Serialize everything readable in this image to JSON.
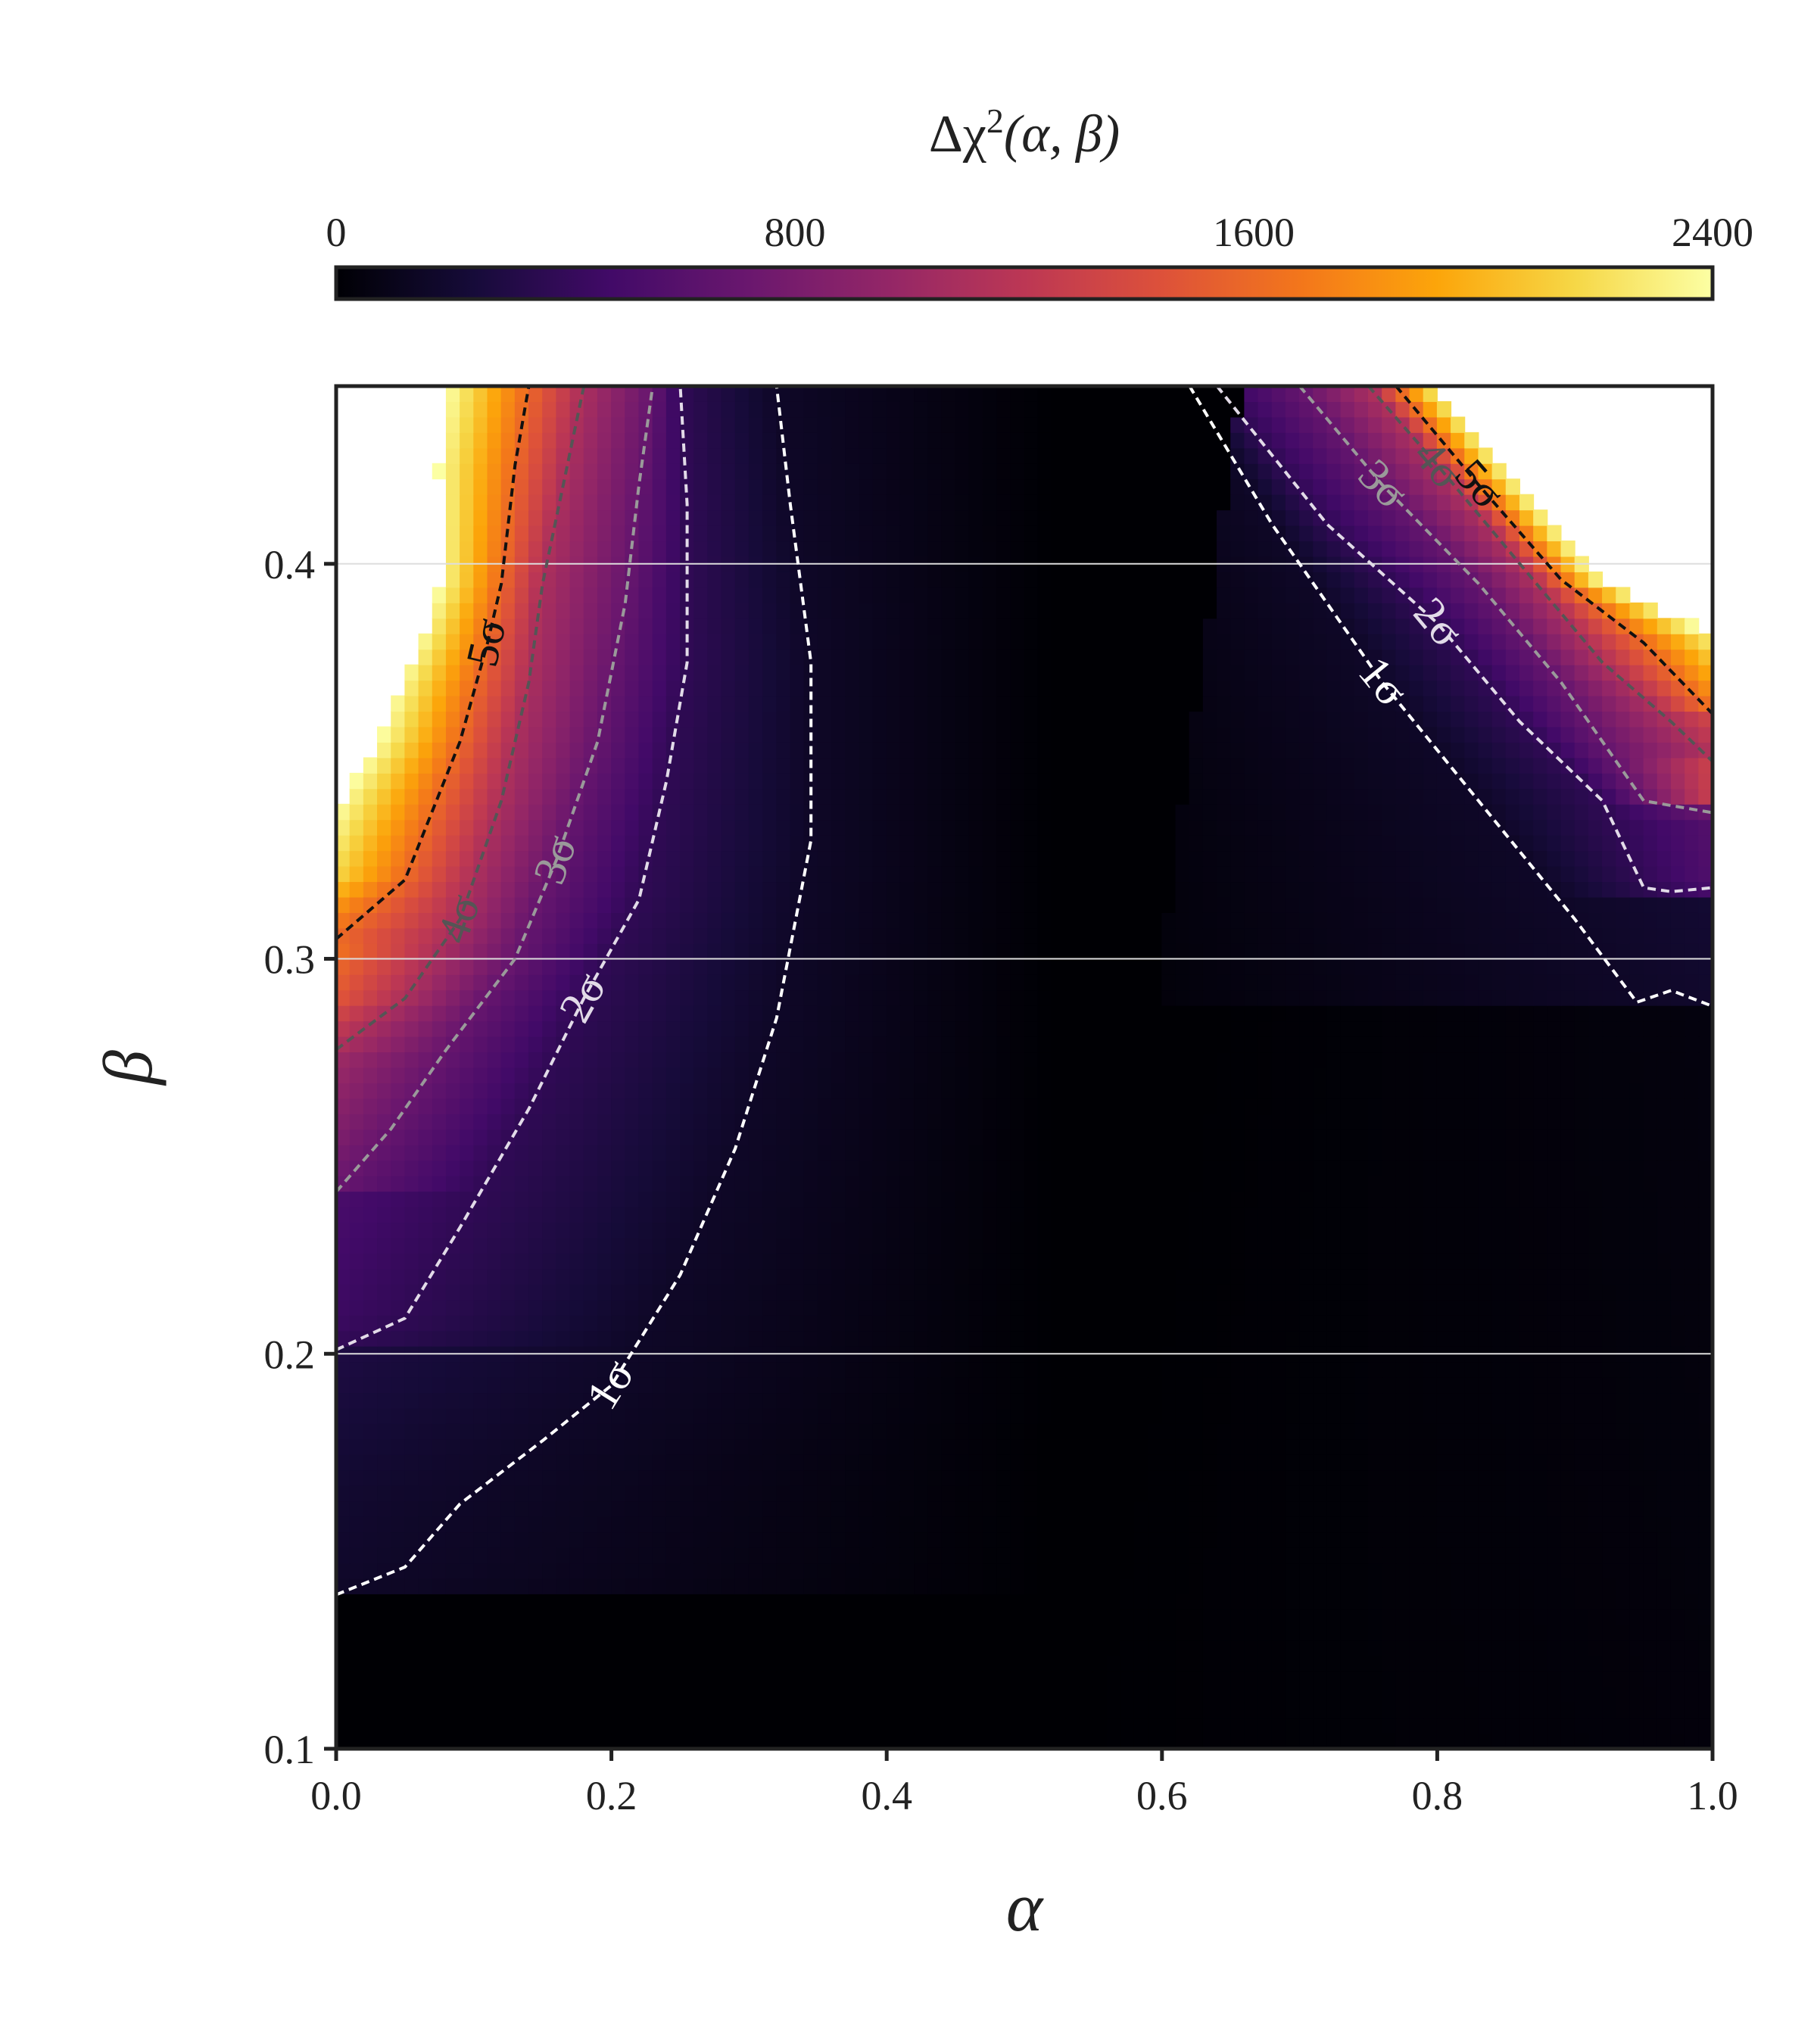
{
  "chart_data": {
    "type": "heatmap",
    "subtype": "filled contour",
    "colorscale": "inferno",
    "colorbar": {
      "title": "Δχ²(α, β)",
      "title_parts": {
        "delta": "Δχ",
        "sup": "2",
        "args": "(α, β)"
      },
      "range": [
        0,
        2400
      ],
      "ticks": [
        0,
        800,
        1600,
        2400
      ],
      "tick_labels": [
        "0",
        "800",
        "1600",
        "2400"
      ],
      "orientation": "horizontal",
      "placement": "top"
    },
    "xlabel": "α",
    "ylabel": "β",
    "xlim": [
      0.0,
      1.0
    ],
    "ylim": [
      0.1,
      0.445
    ],
    "xticks": [
      0.0,
      0.2,
      0.4,
      0.6,
      0.8,
      1.0
    ],
    "xtick_labels": [
      "0.0",
      "0.2",
      "0.4",
      "0.6",
      "0.8",
      "1.0"
    ],
    "yticks": [
      0.1,
      0.2,
      0.3,
      0.4
    ],
    "ytick_labels": [
      "0.1",
      "0.2",
      "0.3",
      "0.4"
    ],
    "grid": "horizontal only, light",
    "minimum": {
      "alpha": 0.52,
      "beta": 0.1,
      "value": 0
    },
    "masked_above": 2400,
    "contours": [
      {
        "label": "1σ",
        "color": "#ffffff",
        "style": "dashed",
        "left_branch": [
          [
            0.0,
            0.139
          ],
          [
            0.05,
            0.146
          ],
          [
            0.09,
            0.162
          ],
          [
            0.15,
            0.178
          ],
          [
            0.2,
            0.192
          ],
          [
            0.25,
            0.22
          ],
          [
            0.29,
            0.252
          ],
          [
            0.32,
            0.285
          ],
          [
            0.345,
            0.33
          ],
          [
            0.345,
            0.375
          ],
          [
            0.33,
            0.415
          ],
          [
            0.32,
            0.445
          ]
        ],
        "right_branch": [
          [
            0.62,
            0.445
          ],
          [
            0.68,
            0.41
          ],
          [
            0.76,
            0.37
          ],
          [
            0.83,
            0.34
          ],
          [
            0.9,
            0.31
          ],
          [
            0.945,
            0.289
          ],
          [
            0.97,
            0.292
          ],
          [
            1.0,
            0.288
          ]
        ]
      },
      {
        "label": "2σ",
        "color": "#e2dbe8",
        "style": "dashed",
        "left_branch": [
          [
            0.0,
            0.201
          ],
          [
            0.05,
            0.209
          ],
          [
            0.09,
            0.232
          ],
          [
            0.14,
            0.262
          ],
          [
            0.18,
            0.29
          ],
          [
            0.22,
            0.315
          ],
          [
            0.24,
            0.345
          ],
          [
            0.255,
            0.375
          ],
          [
            0.255,
            0.415
          ],
          [
            0.25,
            0.445
          ]
        ],
        "right_branch": [
          [
            0.64,
            0.445
          ],
          [
            0.72,
            0.41
          ],
          [
            0.8,
            0.385
          ],
          [
            0.86,
            0.36
          ],
          [
            0.92,
            0.34
          ],
          [
            0.95,
            0.318
          ],
          [
            0.97,
            0.317
          ],
          [
            1.0,
            0.318
          ]
        ]
      },
      {
        "label": "3σ",
        "color": "#9a9a9a",
        "style": "dashed",
        "left_branch": [
          [
            0.0,
            0.241
          ],
          [
            0.04,
            0.257
          ],
          [
            0.08,
            0.277
          ],
          [
            0.13,
            0.3
          ],
          [
            0.16,
            0.325
          ],
          [
            0.19,
            0.355
          ],
          [
            0.21,
            0.39
          ],
          [
            0.22,
            0.42
          ],
          [
            0.23,
            0.445
          ]
        ],
        "right_branch": [
          [
            0.7,
            0.445
          ],
          [
            0.76,
            0.42
          ],
          [
            0.83,
            0.395
          ],
          [
            0.89,
            0.37
          ],
          [
            0.95,
            0.34
          ],
          [
            1.0,
            0.337
          ]
        ]
      },
      {
        "label": "4σ",
        "color": "#555555",
        "style": "dashed",
        "left_branch": [
          [
            0.0,
            0.277
          ],
          [
            0.05,
            0.29
          ],
          [
            0.09,
            0.31
          ],
          [
            0.12,
            0.34
          ],
          [
            0.14,
            0.37
          ],
          [
            0.15,
            0.395
          ],
          [
            0.165,
            0.42
          ],
          [
            0.18,
            0.445
          ]
        ],
        "right_branch": [
          [
            0.75,
            0.445
          ],
          [
            0.8,
            0.425
          ],
          [
            0.86,
            0.4
          ],
          [
            0.92,
            0.375
          ],
          [
            0.97,
            0.36
          ],
          [
            1.0,
            0.35
          ]
        ]
      },
      {
        "label": "5σ",
        "color": "#111111",
        "style": "dashed",
        "left_branch": [
          [
            0.0,
            0.305
          ],
          [
            0.05,
            0.32
          ],
          [
            0.09,
            0.355
          ],
          [
            0.11,
            0.38
          ],
          [
            0.12,
            0.395
          ],
          [
            0.13,
            0.425
          ],
          [
            0.14,
            0.445
          ]
        ],
        "right_branch": [
          [
            0.77,
            0.445
          ],
          [
            0.83,
            0.42
          ],
          [
            0.89,
            0.396
          ],
          [
            0.95,
            0.38
          ],
          [
            1.0,
            0.362
          ]
        ]
      }
    ]
  }
}
